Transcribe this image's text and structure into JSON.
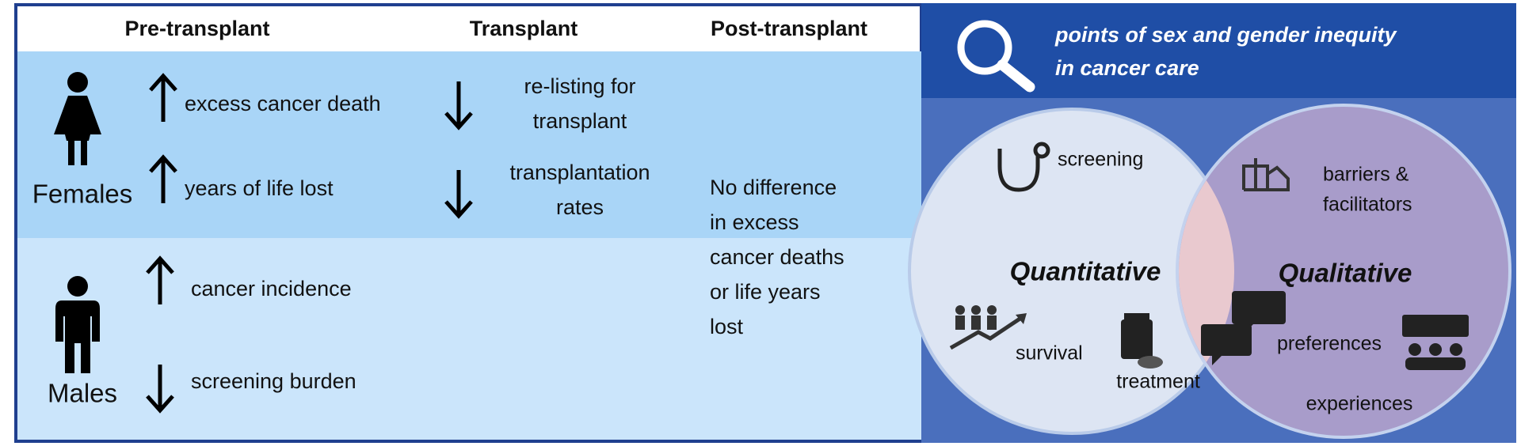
{
  "headers": [
    "Pre-transplant",
    "Transplant",
    "Post-transplant"
  ],
  "females": {
    "label": "Females",
    "pre": [
      {
        "arrow": "up",
        "lines": [
          "excess cancer death"
        ]
      },
      {
        "arrow": "up",
        "lines": [
          "years of life lost"
        ]
      }
    ],
    "transplant": [
      {
        "arrow": "down",
        "lines": [
          "re-listing for",
          "transplant"
        ]
      },
      {
        "arrow": "down",
        "lines": [
          "transplantation",
          "rates"
        ]
      }
    ]
  },
  "males": {
    "label": "Males",
    "pre": [
      {
        "arrow": "up",
        "lines": [
          "cancer incidence"
        ]
      },
      {
        "arrow": "down",
        "lines": [
          "screening burden"
        ]
      }
    ]
  },
  "post_transplant": [
    "No difference",
    "in excess",
    "cancer deaths",
    "or life years",
    "lost"
  ],
  "legend": {
    "title": [
      "points of sex and gender inequity",
      "in cancer care"
    ],
    "quantitative": {
      "label": "Quantitative",
      "items": [
        "screening",
        "survival",
        "treatment"
      ]
    },
    "qualitative": {
      "label": "Qualitative",
      "items": [
        [
          "barriers &",
          "facilitators"
        ],
        "preferences",
        "experiences"
      ]
    }
  }
}
